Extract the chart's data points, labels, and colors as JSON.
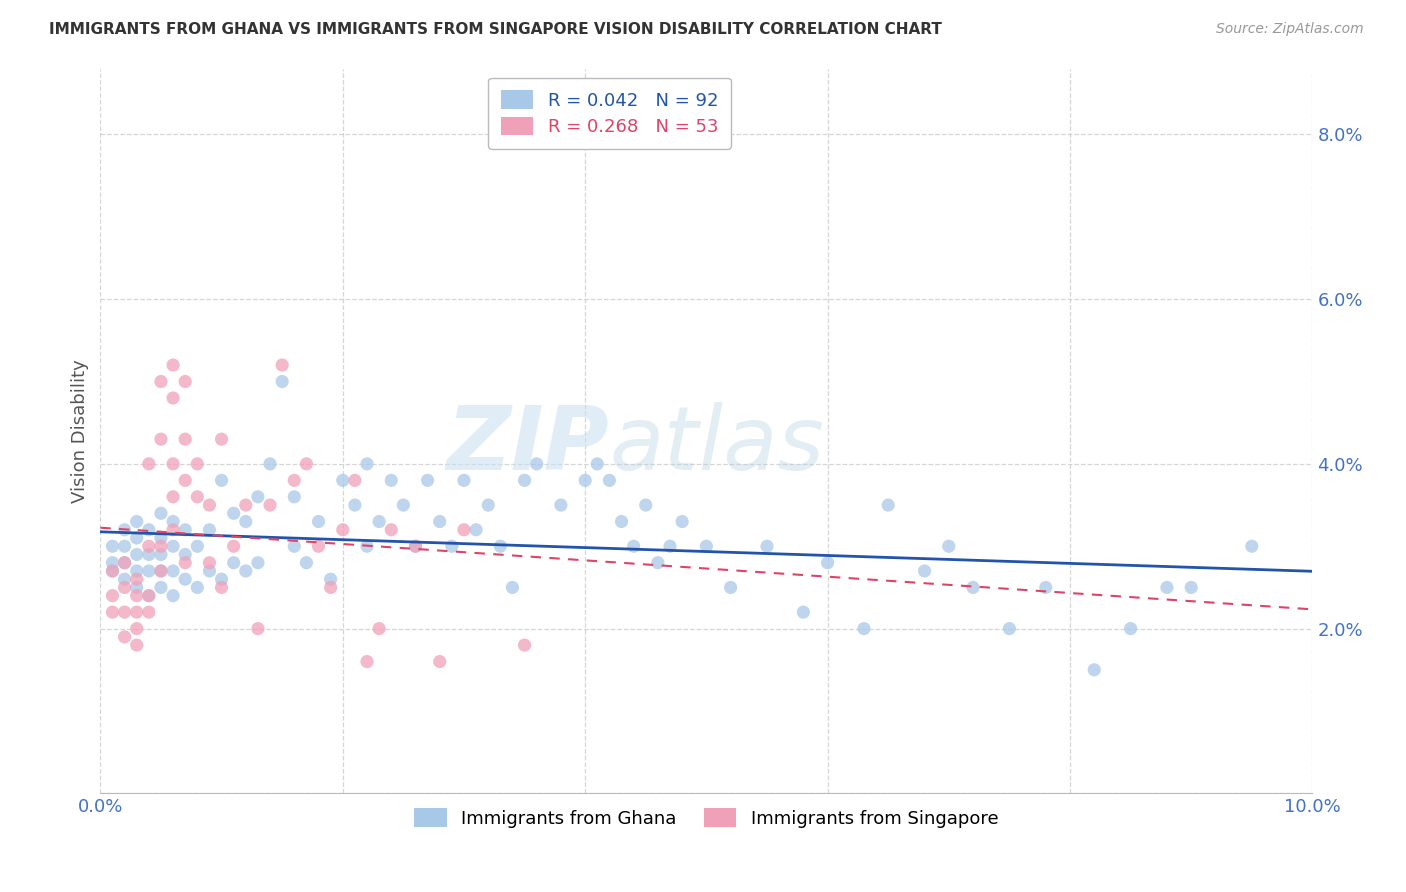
{
  "title": "IMMIGRANTS FROM GHANA VS IMMIGRANTS FROM SINGAPORE VISION DISABILITY CORRELATION CHART",
  "source": "Source: ZipAtlas.com",
  "ylabel": "Vision Disability",
  "xlim": [
    0.0,
    0.1
  ],
  "ylim": [
    0.0,
    0.088
  ],
  "ghana_R": 0.042,
  "ghana_N": 92,
  "singapore_R": 0.268,
  "singapore_N": 53,
  "ghana_color": "#a8c8e8",
  "singapore_color": "#f0a0b8",
  "ghana_line_color": "#2255aa",
  "singapore_line_color": "#dd4466",
  "ghana_scatter_x": [
    0.001,
    0.001,
    0.001,
    0.002,
    0.002,
    0.002,
    0.002,
    0.003,
    0.003,
    0.003,
    0.003,
    0.003,
    0.004,
    0.004,
    0.004,
    0.004,
    0.005,
    0.005,
    0.005,
    0.005,
    0.005,
    0.006,
    0.006,
    0.006,
    0.006,
    0.007,
    0.007,
    0.007,
    0.008,
    0.008,
    0.009,
    0.009,
    0.01,
    0.01,
    0.011,
    0.011,
    0.012,
    0.012,
    0.013,
    0.013,
    0.014,
    0.015,
    0.016,
    0.016,
    0.017,
    0.018,
    0.019,
    0.02,
    0.021,
    0.022,
    0.022,
    0.023,
    0.024,
    0.025,
    0.026,
    0.027,
    0.028,
    0.029,
    0.03,
    0.031,
    0.032,
    0.033,
    0.034,
    0.035,
    0.036,
    0.038,
    0.04,
    0.041,
    0.042,
    0.043,
    0.044,
    0.045,
    0.046,
    0.047,
    0.048,
    0.05,
    0.052,
    0.055,
    0.058,
    0.06,
    0.063,
    0.065,
    0.068,
    0.07,
    0.072,
    0.075,
    0.078,
    0.082,
    0.085,
    0.088,
    0.09,
    0.095
  ],
  "ghana_scatter_y": [
    0.027,
    0.028,
    0.03,
    0.026,
    0.028,
    0.03,
    0.032,
    0.025,
    0.027,
    0.029,
    0.031,
    0.033,
    0.024,
    0.027,
    0.029,
    0.032,
    0.025,
    0.027,
    0.029,
    0.031,
    0.034,
    0.024,
    0.027,
    0.03,
    0.033,
    0.026,
    0.029,
    0.032,
    0.025,
    0.03,
    0.027,
    0.032,
    0.026,
    0.038,
    0.028,
    0.034,
    0.027,
    0.033,
    0.028,
    0.036,
    0.04,
    0.05,
    0.03,
    0.036,
    0.028,
    0.033,
    0.026,
    0.038,
    0.035,
    0.03,
    0.04,
    0.033,
    0.038,
    0.035,
    0.03,
    0.038,
    0.033,
    0.03,
    0.038,
    0.032,
    0.035,
    0.03,
    0.025,
    0.038,
    0.04,
    0.035,
    0.038,
    0.04,
    0.038,
    0.033,
    0.03,
    0.035,
    0.028,
    0.03,
    0.033,
    0.03,
    0.025,
    0.03,
    0.022,
    0.028,
    0.02,
    0.035,
    0.027,
    0.03,
    0.025,
    0.02,
    0.025,
    0.015,
    0.02,
    0.025,
    0.025,
    0.03
  ],
  "singapore_scatter_x": [
    0.001,
    0.001,
    0.001,
    0.002,
    0.002,
    0.002,
    0.002,
    0.003,
    0.003,
    0.003,
    0.003,
    0.003,
    0.004,
    0.004,
    0.004,
    0.004,
    0.005,
    0.005,
    0.005,
    0.005,
    0.006,
    0.006,
    0.006,
    0.006,
    0.006,
    0.007,
    0.007,
    0.007,
    0.007,
    0.008,
    0.008,
    0.009,
    0.009,
    0.01,
    0.01,
    0.011,
    0.012,
    0.013,
    0.014,
    0.015,
    0.016,
    0.017,
    0.018,
    0.019,
    0.02,
    0.021,
    0.022,
    0.023,
    0.024,
    0.026,
    0.028,
    0.03,
    0.035
  ],
  "singapore_scatter_y": [
    0.024,
    0.027,
    0.022,
    0.025,
    0.022,
    0.019,
    0.028,
    0.024,
    0.02,
    0.026,
    0.018,
    0.022,
    0.024,
    0.03,
    0.022,
    0.04,
    0.027,
    0.043,
    0.05,
    0.03,
    0.036,
    0.04,
    0.052,
    0.048,
    0.032,
    0.038,
    0.043,
    0.028,
    0.05,
    0.036,
    0.04,
    0.035,
    0.028,
    0.025,
    0.043,
    0.03,
    0.035,
    0.02,
    0.035,
    0.052,
    0.038,
    0.04,
    0.03,
    0.025,
    0.032,
    0.038,
    0.016,
    0.02,
    0.032,
    0.03,
    0.016,
    0.032,
    0.018
  ],
  "watermark_zip": "ZIP",
  "watermark_atlas": "atlas",
  "background_color": "#ffffff",
  "grid_color": "#cccccc",
  "tick_label_color": "#4472c4",
  "axis_label_color": "#555555"
}
